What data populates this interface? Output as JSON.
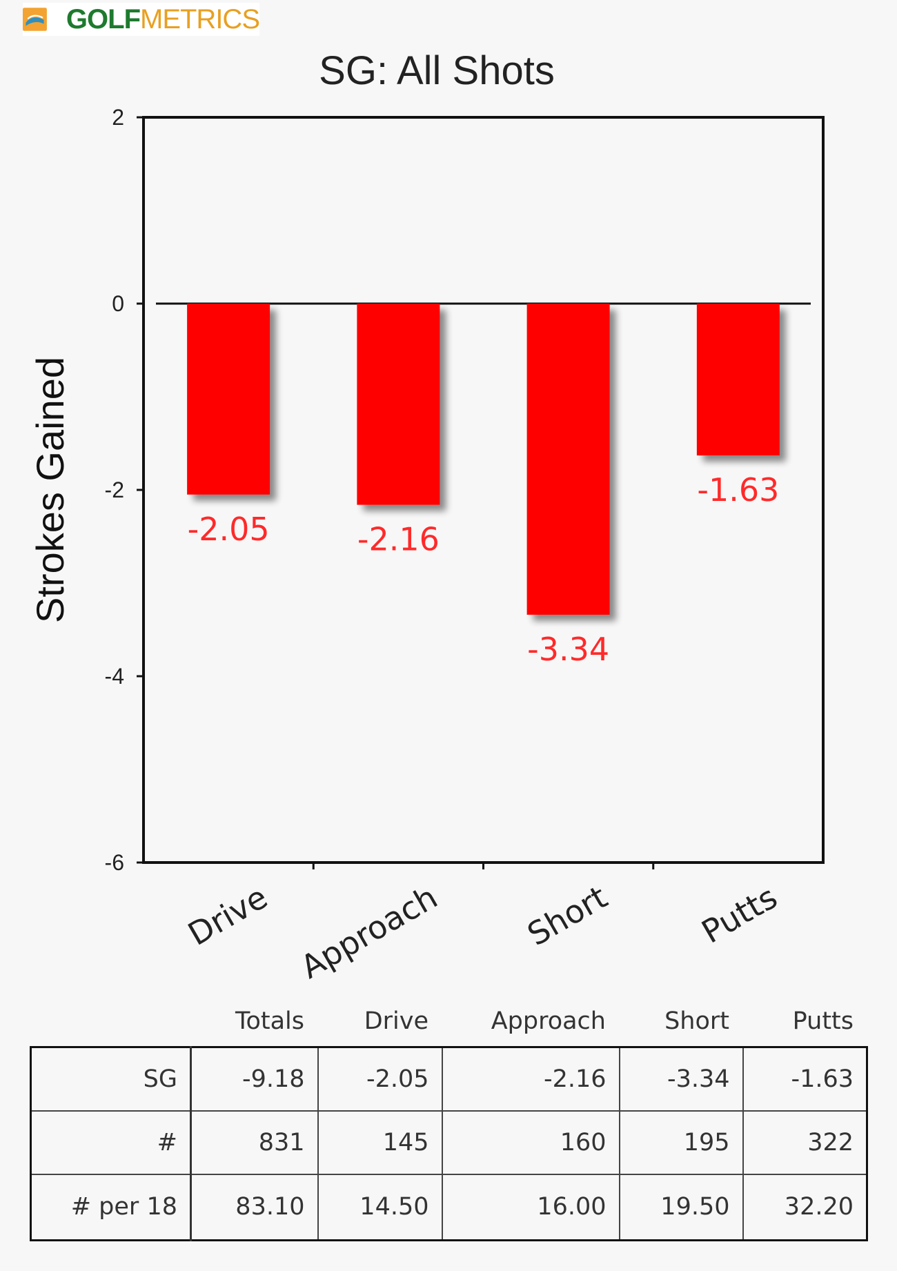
{
  "brand": {
    "golf": "GOLF",
    "metrics": "METRICS",
    "icon": "golfmetrics-logo-icon"
  },
  "chart_data": {
    "type": "bar",
    "title": "SG: All Shots",
    "ylabel": "Strokes Gained",
    "xlabel": "",
    "categories": [
      "Drive",
      "Approach",
      "Short",
      "Putts"
    ],
    "values": [
      -2.05,
      -2.16,
      -3.34,
      -1.63
    ],
    "data_labels": [
      "-2.05",
      "-2.16",
      "-3.34",
      "-1.63"
    ],
    "ylim": [
      -6,
      2
    ],
    "yticks": [
      "2",
      "0",
      "-2",
      "-4",
      "-6"
    ],
    "ytick_values": [
      2,
      0,
      -2,
      -4,
      -6
    ],
    "grid": false,
    "bar_color": "#ff0000",
    "label_color": "#ff2a2a"
  },
  "table": {
    "headers": [
      "",
      "Totals",
      "Drive",
      "Approach",
      "Short",
      "Putts"
    ],
    "rows": [
      [
        "SG",
        "-9.18",
        "-2.05",
        "-2.16",
        "-3.34",
        "-1.63"
      ],
      [
        "#",
        "831",
        "145",
        "160",
        "195",
        "322"
      ],
      [
        "# per 18",
        "83.10",
        "14.50",
        "16.00",
        "19.50",
        "32.20"
      ]
    ]
  }
}
